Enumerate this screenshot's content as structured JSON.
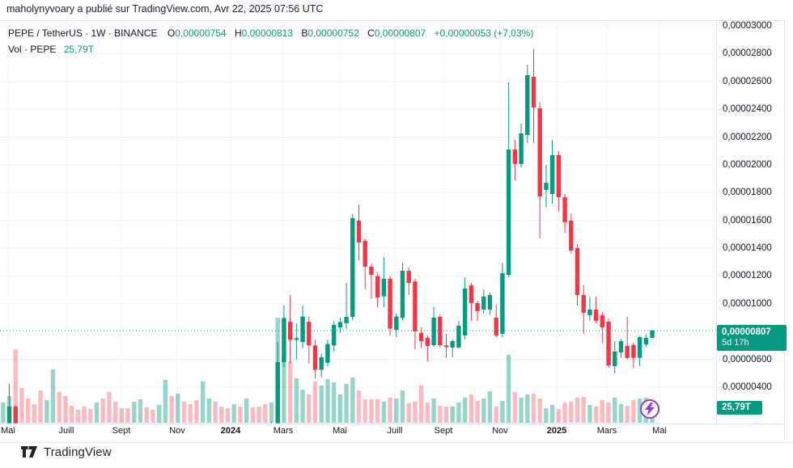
{
  "header": {
    "attribution": "maholynyvoary a publié sur TradingView.com, Avr 22, 2025 07:56 UTC"
  },
  "legend": {
    "symbol": "PEPE / TetherUS · 1W · BINANCE",
    "ohlc": [
      {
        "k": "O",
        "v": "0,00000754"
      },
      {
        "k": "H",
        "v": "0,00000813"
      },
      {
        "k": "B",
        "v": "0,00000752"
      },
      {
        "k": "C",
        "v": "0,00000807"
      }
    ],
    "change": "+0,00000053 (+7,03%)",
    "vol_label": "Vol · PEPE",
    "vol_value": "25,79T"
  },
  "price_scale": {
    "labels": [
      {
        "t": "0,00003000",
        "v": 3000
      },
      {
        "t": "0,00002800",
        "v": 2800
      },
      {
        "t": "0,00002600",
        "v": 2600
      },
      {
        "t": "0,00002400",
        "v": 2400
      },
      {
        "t": "0,00002200",
        "v": 2200
      },
      {
        "t": "0,00002000",
        "v": 2000
      },
      {
        "t": "0,00001800",
        "v": 1800
      },
      {
        "t": "0,00001600",
        "v": 1600
      },
      {
        "t": "0,00001400",
        "v": 1400
      },
      {
        "t": "0,00001200",
        "v": 1200
      },
      {
        "t": "0,00001000",
        "v": 1000
      },
      {
        "t": "0,00000600",
        "v": 600
      },
      {
        "t": "0,00000400",
        "v": 400
      }
    ],
    "tag": {
      "price": "0,00000807",
      "countdown": "5d 17h"
    },
    "vol_tag": "25,79T"
  },
  "time_scale": {
    "labels": [
      {
        "t": "Mai",
        "x": 10,
        "bold": false
      },
      {
        "t": "Juill",
        "x": 82,
        "bold": false
      },
      {
        "t": "Sept",
        "x": 150,
        "bold": false
      },
      {
        "t": "Nov",
        "x": 219,
        "bold": false
      },
      {
        "t": "2024",
        "x": 285,
        "bold": true
      },
      {
        "t": "Mars",
        "x": 350,
        "bold": false
      },
      {
        "t": "Mai",
        "x": 420,
        "bold": false
      },
      {
        "t": "Juill",
        "x": 488,
        "bold": false
      },
      {
        "t": "Sept",
        "x": 548,
        "bold": false
      },
      {
        "t": "Nov",
        "x": 618,
        "bold": false
      },
      {
        "t": "2025",
        "x": 688,
        "bold": true
      },
      {
        "t": "Mars",
        "x": 750,
        "bold": false
      },
      {
        "t": "Mai",
        "x": 815,
        "bold": false
      }
    ]
  },
  "footer": {
    "brand": "TradingView"
  },
  "colors": {
    "up": "#089981",
    "down": "#f23645",
    "vol_up": "rgba(8,153,129,0.42)",
    "vol_down": "rgba(242,54,69,0.34)",
    "accent": "#089981",
    "grid": "#f0f3fa",
    "border": "#e0e3eb",
    "boost_purple": "#a334c4"
  },
  "chart_data": {
    "type": "candlestick+volume",
    "title": "PEPE / TetherUS weekly candlestick chart with volume",
    "symbol": "PEPE/TetherUS",
    "timeframe": "1W",
    "exchange": "BINANCE",
    "price_unit": "price values are USDT ×1e-8 (e.g. 807 = 0,00000807)",
    "x_axis": "weekly candles, Apr 2023 → Apr 2025",
    "ylim": [
      150,
      3000
    ],
    "grid": true,
    "current": {
      "open": 754,
      "high": 813,
      "low": 752,
      "close": 807,
      "change": 53,
      "change_pct": 7.03,
      "countdown": "5d 17h",
      "volume_T": 25.79
    },
    "last_price": 807,
    "candles_ohlc": [
      [
        70,
        140,
        60,
        120
      ],
      [
        95,
        424,
        85,
        260
      ],
      [
        260,
        270,
        75,
        95
      ],
      [
        95,
        110,
        70,
        80
      ],
      [
        80,
        95,
        65,
        72
      ],
      [
        72,
        85,
        60,
        66
      ],
      [
        66,
        80,
        52,
        58
      ],
      [
        58,
        75,
        55,
        68
      ],
      [
        68,
        100,
        62,
        88
      ],
      [
        88,
        95,
        70,
        76
      ],
      [
        76,
        85,
        62,
        68
      ],
      [
        68,
        75,
        58,
        62
      ],
      [
        62,
        70,
        54,
        58
      ],
      [
        58,
        66,
        50,
        54
      ],
      [
        54,
        62,
        46,
        50
      ],
      [
        50,
        62,
        48,
        58
      ],
      [
        58,
        64,
        48,
        52
      ],
      [
        52,
        60,
        44,
        48
      ],
      [
        48,
        56,
        42,
        45
      ],
      [
        45,
        52,
        40,
        42
      ],
      [
        42,
        50,
        38,
        40
      ],
      [
        40,
        52,
        38,
        48
      ],
      [
        48,
        60,
        46,
        55
      ],
      [
        55,
        60,
        45,
        50
      ],
      [
        50,
        56,
        42,
        46
      ],
      [
        46,
        58,
        44,
        54
      ],
      [
        54,
        80,
        50,
        72
      ],
      [
        72,
        80,
        58,
        62
      ],
      [
        62,
        85,
        60,
        78
      ],
      [
        78,
        85,
        62,
        68
      ],
      [
        68,
        76,
        58,
        62
      ],
      [
        62,
        70,
        52,
        58
      ],
      [
        58,
        92,
        55,
        82
      ],
      [
        82,
        98,
        76,
        90
      ],
      [
        90,
        96,
        74,
        80
      ],
      [
        80,
        88,
        68,
        74
      ],
      [
        74,
        82,
        64,
        70
      ],
      [
        70,
        84,
        66,
        78
      ],
      [
        78,
        84,
        64,
        70
      ],
      [
        70,
        92,
        66,
        84
      ],
      [
        84,
        90,
        70,
        76
      ],
      [
        76,
        84,
        64,
        70
      ],
      [
        70,
        80,
        60,
        66
      ],
      [
        66,
        150,
        62,
        130
      ],
      [
        130,
        724,
        120,
        580
      ],
      [
        580,
        987,
        545,
        898
      ],
      [
        870,
        1063,
        570,
        740
      ],
      [
        740,
        860,
        598,
        753
      ],
      [
        724,
        987,
        679,
        908
      ],
      [
        870,
        908,
        569,
        700
      ],
      [
        700,
        740,
        464,
        525
      ],
      [
        525,
        644,
        470,
        615
      ],
      [
        575,
        743,
        551,
        710
      ],
      [
        700,
        877,
        656,
        848
      ],
      [
        830,
        900,
        790,
        868
      ],
      [
        860,
        1150,
        819,
        906
      ],
      [
        906,
        1645,
        880,
        1616
      ],
      [
        1598,
        1714,
        1313,
        1441
      ],
      [
        1453,
        1470,
        1104,
        1267
      ],
      [
        1267,
        1290,
        1034,
        1209
      ],
      [
        1198,
        1226,
        976,
        1044
      ],
      [
        1053,
        1336,
        976,
        1180
      ],
      [
        1180,
        1200,
        772,
        821
      ],
      [
        813,
        930,
        760,
        908
      ],
      [
        898,
        1295,
        880,
        1237
      ],
      [
        1237,
        1260,
        1063,
        1150
      ],
      [
        1160,
        1180,
        673,
        801
      ],
      [
        790,
        830,
        685,
        732
      ],
      [
        755,
        770,
        586,
        697
      ],
      [
        702,
        976,
        690,
        900
      ],
      [
        906,
        920,
        685,
        702
      ],
      [
        700,
        784,
        610,
        688
      ],
      [
        685,
        745,
        615,
        731
      ],
      [
        685,
        877,
        680,
        842
      ],
      [
        772,
        1190,
        743,
        1110
      ],
      [
        1133,
        1150,
        877,
        1005
      ],
      [
        1005,
        1020,
        877,
        947
      ],
      [
        958,
        1104,
        930,
        1052
      ],
      [
        958,
        1080,
        920,
        1063
      ],
      [
        900,
        993,
        755,
        772
      ],
      [
        784,
        1295,
        760,
        1220
      ],
      [
        1208,
        2593,
        1190,
        2110
      ],
      [
        2110,
        2180,
        1890,
        2006
      ],
      [
        2006,
        2296,
        1983,
        2226
      ],
      [
        2215,
        2721,
        2157,
        2645
      ],
      [
        2634,
        2832,
        2157,
        2413
      ],
      [
        2407,
        2450,
        1470,
        1773
      ],
      [
        1820,
        2000,
        1692,
        1870
      ],
      [
        1790,
        2180,
        1720,
        2070
      ],
      [
        2070,
        2100,
        1663,
        1767
      ],
      [
        1767,
        1790,
        1511,
        1587
      ],
      [
        1598,
        1650,
        1360,
        1383
      ],
      [
        1401,
        1430,
        987,
        1063
      ],
      [
        1063,
        1133,
        784,
        935
      ],
      [
        917,
        1052,
        877,
        958
      ],
      [
        958,
        1052,
        860,
        877
      ],
      [
        917,
        940,
        714,
        830
      ],
      [
        871,
        890,
        540,
        557
      ],
      [
        551,
        731,
        499,
        656
      ],
      [
        650,
        745,
        610,
        731
      ],
      [
        697,
        906,
        600,
        610
      ],
      [
        704,
        720,
        536,
        611
      ],
      [
        611,
        770,
        551,
        760
      ],
      [
        707,
        781,
        690,
        754
      ],
      [
        754,
        813,
        752,
        807
      ]
    ],
    "volumes_T": [
      40.5,
      53.5,
      147,
      69.7,
      48.6,
      37.3,
      64.8,
      45.4,
      107,
      61.6,
      53.5,
      34,
      25.9,
      32.4,
      27.5,
      40.5,
      48.6,
      61.6,
      42.1,
      29.2,
      29.2,
      42.1,
      47,
      30.8,
      25.9,
      35.6,
      85.9,
      53.5,
      58.3,
      42.1,
      37.3,
      45.4,
      82.6,
      48.6,
      42.1,
      32.4,
      29.2,
      37.3,
      32.4,
      48.6,
      30.8,
      32.4,
      37.3,
      40.5,
      210.6,
      129.6,
      123.1,
      89.1,
      66.4,
      56.7,
      82.6,
      74.5,
      87.5,
      81,
      56.7,
      77.8,
      90.7,
      64.8,
      47,
      47,
      47,
      42.1,
      50.2,
      48.6,
      64.8,
      38.9,
      42.1,
      74.5,
      40.5,
      48.6,
      34,
      32.4,
      32.4,
      40.5,
      50.2,
      56.7,
      43.7,
      48.6,
      63.2,
      32.4,
      43.7,
      136.1,
      61.6,
      50.2,
      56.7,
      58.3,
      48.6,
      29.2,
      35.6,
      27.5,
      40.5,
      42.1,
      50.2,
      51.8,
      35.6,
      32.4,
      45.4,
      40.5,
      50.2,
      37.3,
      34,
      45.4,
      48.6,
      50.2,
      25.79
    ]
  }
}
